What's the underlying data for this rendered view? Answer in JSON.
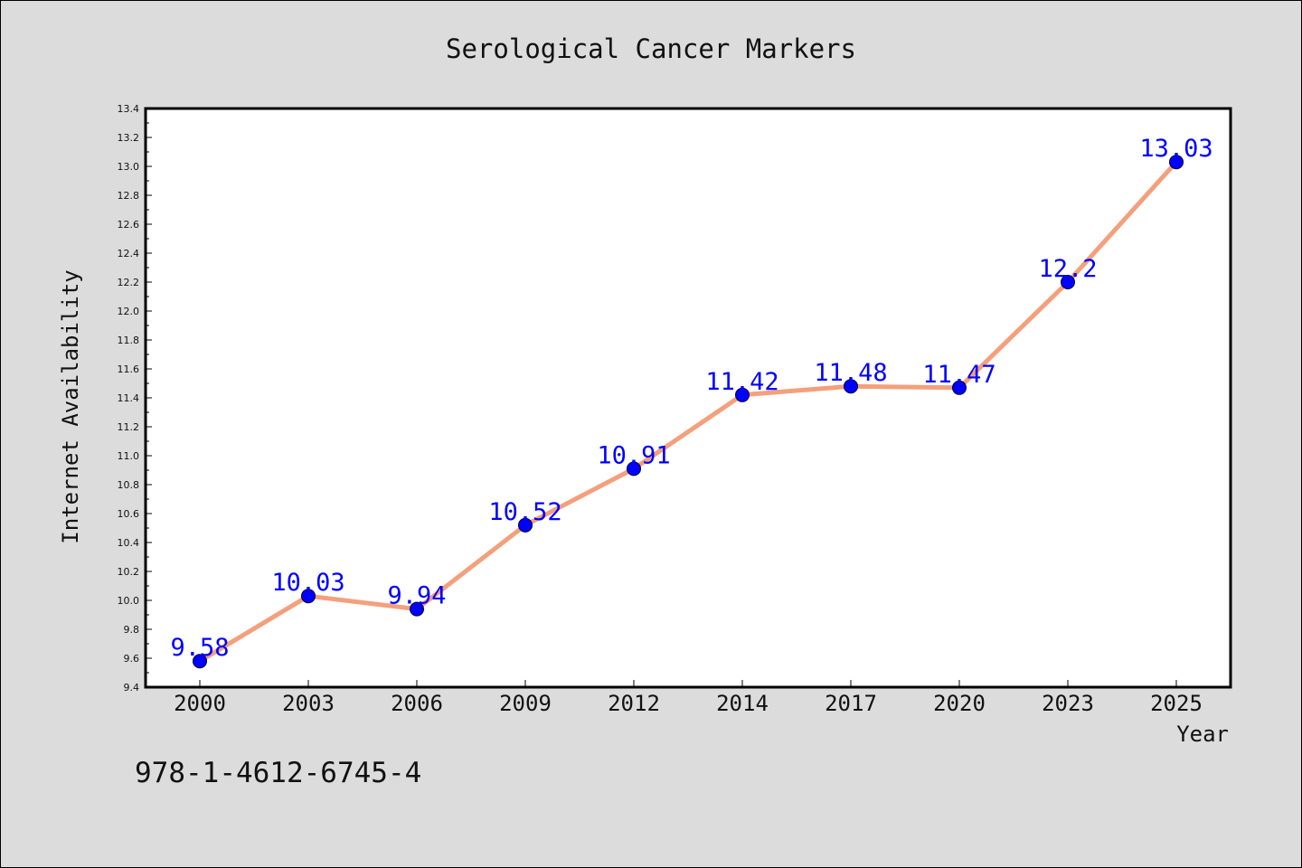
{
  "chart_data": {
    "type": "line",
    "title": "Serological Cancer Markers",
    "xlabel": "Year",
    "ylabel": "Internet Availability",
    "categories": [
      "2000",
      "2003",
      "2006",
      "2009",
      "2012",
      "2014",
      "2017",
      "2020",
      "2023",
      "2025"
    ],
    "values": [
      9.58,
      10.03,
      9.94,
      10.52,
      10.91,
      11.42,
      11.48,
      11.47,
      12.2,
      13.03
    ],
    "data_labels": [
      "9.58",
      "10.03",
      "9.94",
      "10.52",
      "10.91",
      "11.42",
      "11.48",
      "11.47",
      "12.2",
      "13.03"
    ],
    "ylim": [
      9.4,
      13.4
    ],
    "yticks": [
      "9.4",
      "9.6",
      "9.8",
      "10.0",
      "10.2",
      "10.4",
      "10.6",
      "10.8",
      "11.0",
      "11.2",
      "11.4",
      "11.6",
      "11.8",
      "12.0",
      "12.2",
      "12.4",
      "12.6",
      "12.8",
      "13.0",
      "13.2",
      "13.4"
    ],
    "grid": false,
    "line_color": "#f4a07c",
    "marker_color": "#0000ff",
    "label_color": "#0000ff"
  },
  "footer": {
    "isbn": "978-1-4612-6745-4"
  }
}
